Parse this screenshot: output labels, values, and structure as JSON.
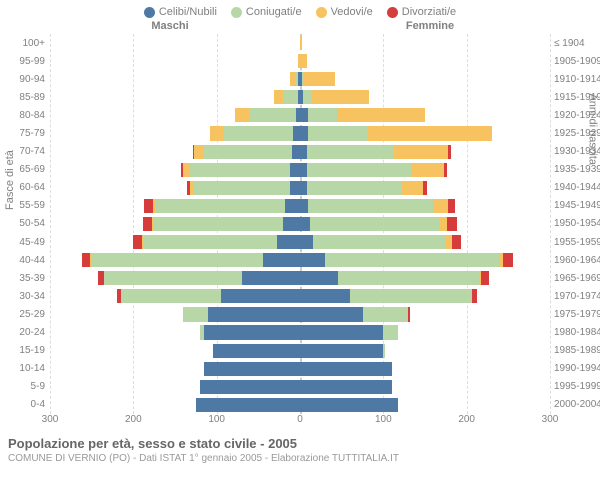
{
  "legend": [
    {
      "label": "Celibi/Nubili",
      "color": "#4f79a5"
    },
    {
      "label": "Coniugati/e",
      "color": "#b8d7a7"
    },
    {
      "label": "Vedovi/e",
      "color": "#f7c360"
    },
    {
      "label": "Divorziati/e",
      "color": "#d73c3c"
    }
  ],
  "header_male": "Maschi",
  "header_female": "Femmine",
  "ylabel_left": "Fasce di età",
  "ylabel_right": "Anni di nascita",
  "xmax": 300,
  "xticks": [
    300,
    200,
    100,
    0,
    100,
    200,
    300
  ],
  "colors": {
    "celibi": "#4f79a5",
    "coniugati": "#b8d7a7",
    "vedovi": "#f7c360",
    "divorziati": "#d73c3c",
    "grid": "#dddddd",
    "centerline": "#cccccc"
  },
  "rows": [
    {
      "age": "100+",
      "birth": "≤ 1904",
      "m": {
        "c": 0,
        "o": 0,
        "v": 0,
        "d": 0
      },
      "f": {
        "c": 0,
        "o": 0,
        "v": 2,
        "d": 0
      }
    },
    {
      "age": "95-99",
      "birth": "1905-1909",
      "m": {
        "c": 0,
        "o": 0,
        "v": 2,
        "d": 0
      },
      "f": {
        "c": 0,
        "o": 0,
        "v": 8,
        "d": 0
      }
    },
    {
      "age": "90-94",
      "birth": "1910-1914",
      "m": {
        "c": 2,
        "o": 4,
        "v": 6,
        "d": 0
      },
      "f": {
        "c": 2,
        "o": 2,
        "v": 38,
        "d": 0
      }
    },
    {
      "age": "85-89",
      "birth": "1915-1919",
      "m": {
        "c": 3,
        "o": 18,
        "v": 10,
        "d": 0
      },
      "f": {
        "c": 3,
        "o": 10,
        "v": 70,
        "d": 0
      }
    },
    {
      "age": "80-84",
      "birth": "1920-1924",
      "m": {
        "c": 5,
        "o": 55,
        "v": 18,
        "d": 0
      },
      "f": {
        "c": 10,
        "o": 35,
        "v": 105,
        "d": 0
      }
    },
    {
      "age": "75-79",
      "birth": "1925-1929",
      "m": {
        "c": 8,
        "o": 85,
        "v": 15,
        "d": 0
      },
      "f": {
        "c": 10,
        "o": 70,
        "v": 150,
        "d": 0
      }
    },
    {
      "age": "70-74",
      "birth": "1930-1934",
      "m": {
        "c": 10,
        "o": 105,
        "v": 12,
        "d": 2
      },
      "f": {
        "c": 8,
        "o": 105,
        "v": 65,
        "d": 3
      }
    },
    {
      "age": "65-69",
      "birth": "1935-1939",
      "m": {
        "c": 12,
        "o": 120,
        "v": 8,
        "d": 3
      },
      "f": {
        "c": 8,
        "o": 125,
        "v": 40,
        "d": 3
      }
    },
    {
      "age": "60-64",
      "birth": "1940-1944",
      "m": {
        "c": 12,
        "o": 115,
        "v": 5,
        "d": 4
      },
      "f": {
        "c": 8,
        "o": 115,
        "v": 25,
        "d": 5
      }
    },
    {
      "age": "55-59",
      "birth": "1945-1949",
      "m": {
        "c": 18,
        "o": 155,
        "v": 4,
        "d": 10
      },
      "f": {
        "c": 10,
        "o": 150,
        "v": 18,
        "d": 8
      }
    },
    {
      "age": "50-54",
      "birth": "1950-1954",
      "m": {
        "c": 20,
        "o": 155,
        "v": 3,
        "d": 10
      },
      "f": {
        "c": 12,
        "o": 155,
        "v": 10,
        "d": 12
      }
    },
    {
      "age": "45-49",
      "birth": "1955-1959",
      "m": {
        "c": 28,
        "o": 160,
        "v": 2,
        "d": 10
      },
      "f": {
        "c": 15,
        "o": 160,
        "v": 8,
        "d": 10
      }
    },
    {
      "age": "40-44",
      "birth": "1960-1964",
      "m": {
        "c": 45,
        "o": 205,
        "v": 2,
        "d": 10
      },
      "f": {
        "c": 30,
        "o": 210,
        "v": 4,
        "d": 12
      }
    },
    {
      "age": "35-39",
      "birth": "1965-1969",
      "m": {
        "c": 70,
        "o": 165,
        "v": 0,
        "d": 8
      },
      "f": {
        "c": 45,
        "o": 170,
        "v": 2,
        "d": 10
      }
    },
    {
      "age": "30-34",
      "birth": "1970-1974",
      "m": {
        "c": 95,
        "o": 120,
        "v": 0,
        "d": 5
      },
      "f": {
        "c": 60,
        "o": 145,
        "v": 2,
        "d": 5
      }
    },
    {
      "age": "25-29",
      "birth": "1975-1979",
      "m": {
        "c": 110,
        "o": 30,
        "v": 0,
        "d": 0
      },
      "f": {
        "c": 75,
        "o": 55,
        "v": 0,
        "d": 2
      }
    },
    {
      "age": "20-24",
      "birth": "1980-1984",
      "m": {
        "c": 115,
        "o": 5,
        "v": 0,
        "d": 0
      },
      "f": {
        "c": 100,
        "o": 18,
        "v": 0,
        "d": 0
      }
    },
    {
      "age": "15-19",
      "birth": "1985-1989",
      "m": {
        "c": 105,
        "o": 0,
        "v": 0,
        "d": 0
      },
      "f": {
        "c": 100,
        "o": 2,
        "v": 0,
        "d": 0
      }
    },
    {
      "age": "10-14",
      "birth": "1990-1994",
      "m": {
        "c": 115,
        "o": 0,
        "v": 0,
        "d": 0
      },
      "f": {
        "c": 110,
        "o": 0,
        "v": 0,
        "d": 0
      }
    },
    {
      "age": "5-9",
      "birth": "1995-1999",
      "m": {
        "c": 120,
        "o": 0,
        "v": 0,
        "d": 0
      },
      "f": {
        "c": 110,
        "o": 0,
        "v": 0,
        "d": 0
      }
    },
    {
      "age": "0-4",
      "birth": "2000-2004",
      "m": {
        "c": 125,
        "o": 0,
        "v": 0,
        "d": 0
      },
      "f": {
        "c": 118,
        "o": 0,
        "v": 0,
        "d": 0
      }
    }
  ],
  "title": "Popolazione per età, sesso e stato civile - 2005",
  "subtitle": "COMUNE DI VERNIO (PO) - Dati ISTAT 1° gennaio 2005 - Elaborazione TUTTITALIA.IT"
}
